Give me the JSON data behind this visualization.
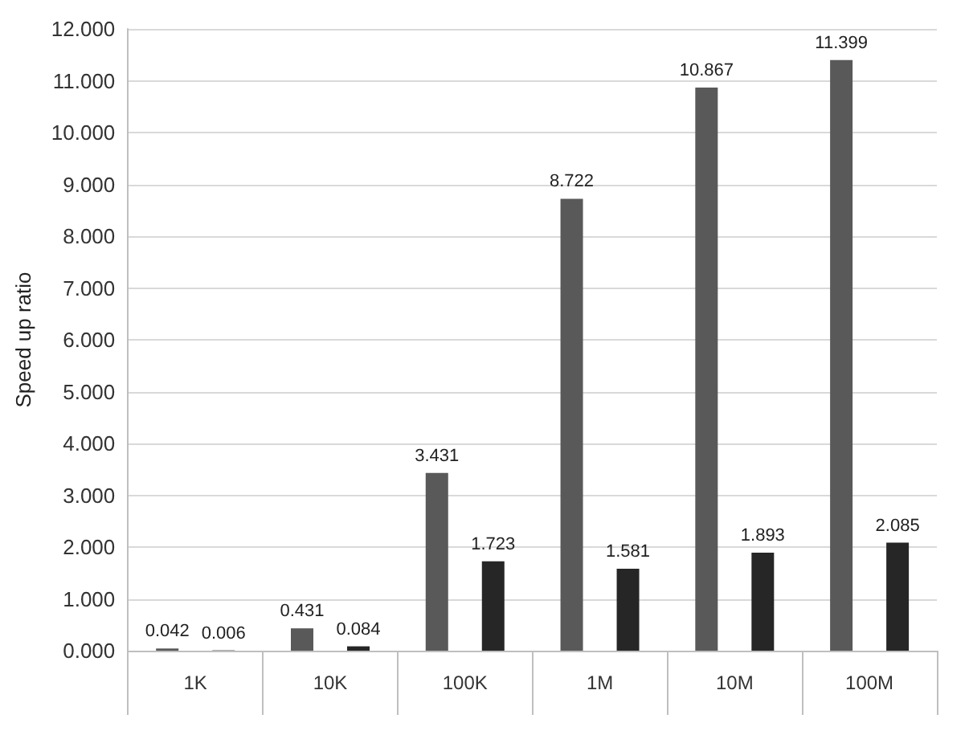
{
  "chart_data": {
    "type": "bar",
    "ylabel": "Speed up ratio",
    "categories": [
      "1K",
      "10K",
      "100K",
      "1M",
      "10M",
      "100M"
    ],
    "series": [
      {
        "color": "#595959",
        "values": [
          0.042,
          0.431,
          3.431,
          8.722,
          10.867,
          11.399
        ],
        "value_labels": [
          "0.042",
          "0.431",
          "3.431",
          "8.722",
          "10.867",
          "11.399"
        ]
      },
      {
        "color": "#262626",
        "values": [
          0.006,
          0.084,
          1.723,
          1.581,
          1.893,
          2.085
        ],
        "value_labels": [
          "0.006",
          "0.084",
          "1.723",
          "1.581",
          "1.893",
          "2.085"
        ]
      }
    ],
    "ylim": [
      0,
      12
    ],
    "yticks": [
      {
        "value": 0,
        "label": "0.000"
      },
      {
        "value": 1,
        "label": "1.000"
      },
      {
        "value": 2,
        "label": "2.000"
      },
      {
        "value": 3,
        "label": "3.000"
      },
      {
        "value": 4,
        "label": "4.000"
      },
      {
        "value": 5,
        "label": "5.000"
      },
      {
        "value": 6,
        "label": "6.000"
      },
      {
        "value": 7,
        "label": "7.000"
      },
      {
        "value": 8,
        "label": "8.000"
      },
      {
        "value": 9,
        "label": "9.000"
      },
      {
        "value": 10,
        "label": "10.000"
      },
      {
        "value": 11,
        "label": "11.000"
      },
      {
        "value": 12,
        "label": "12.000"
      }
    ],
    "grid": "y"
  }
}
